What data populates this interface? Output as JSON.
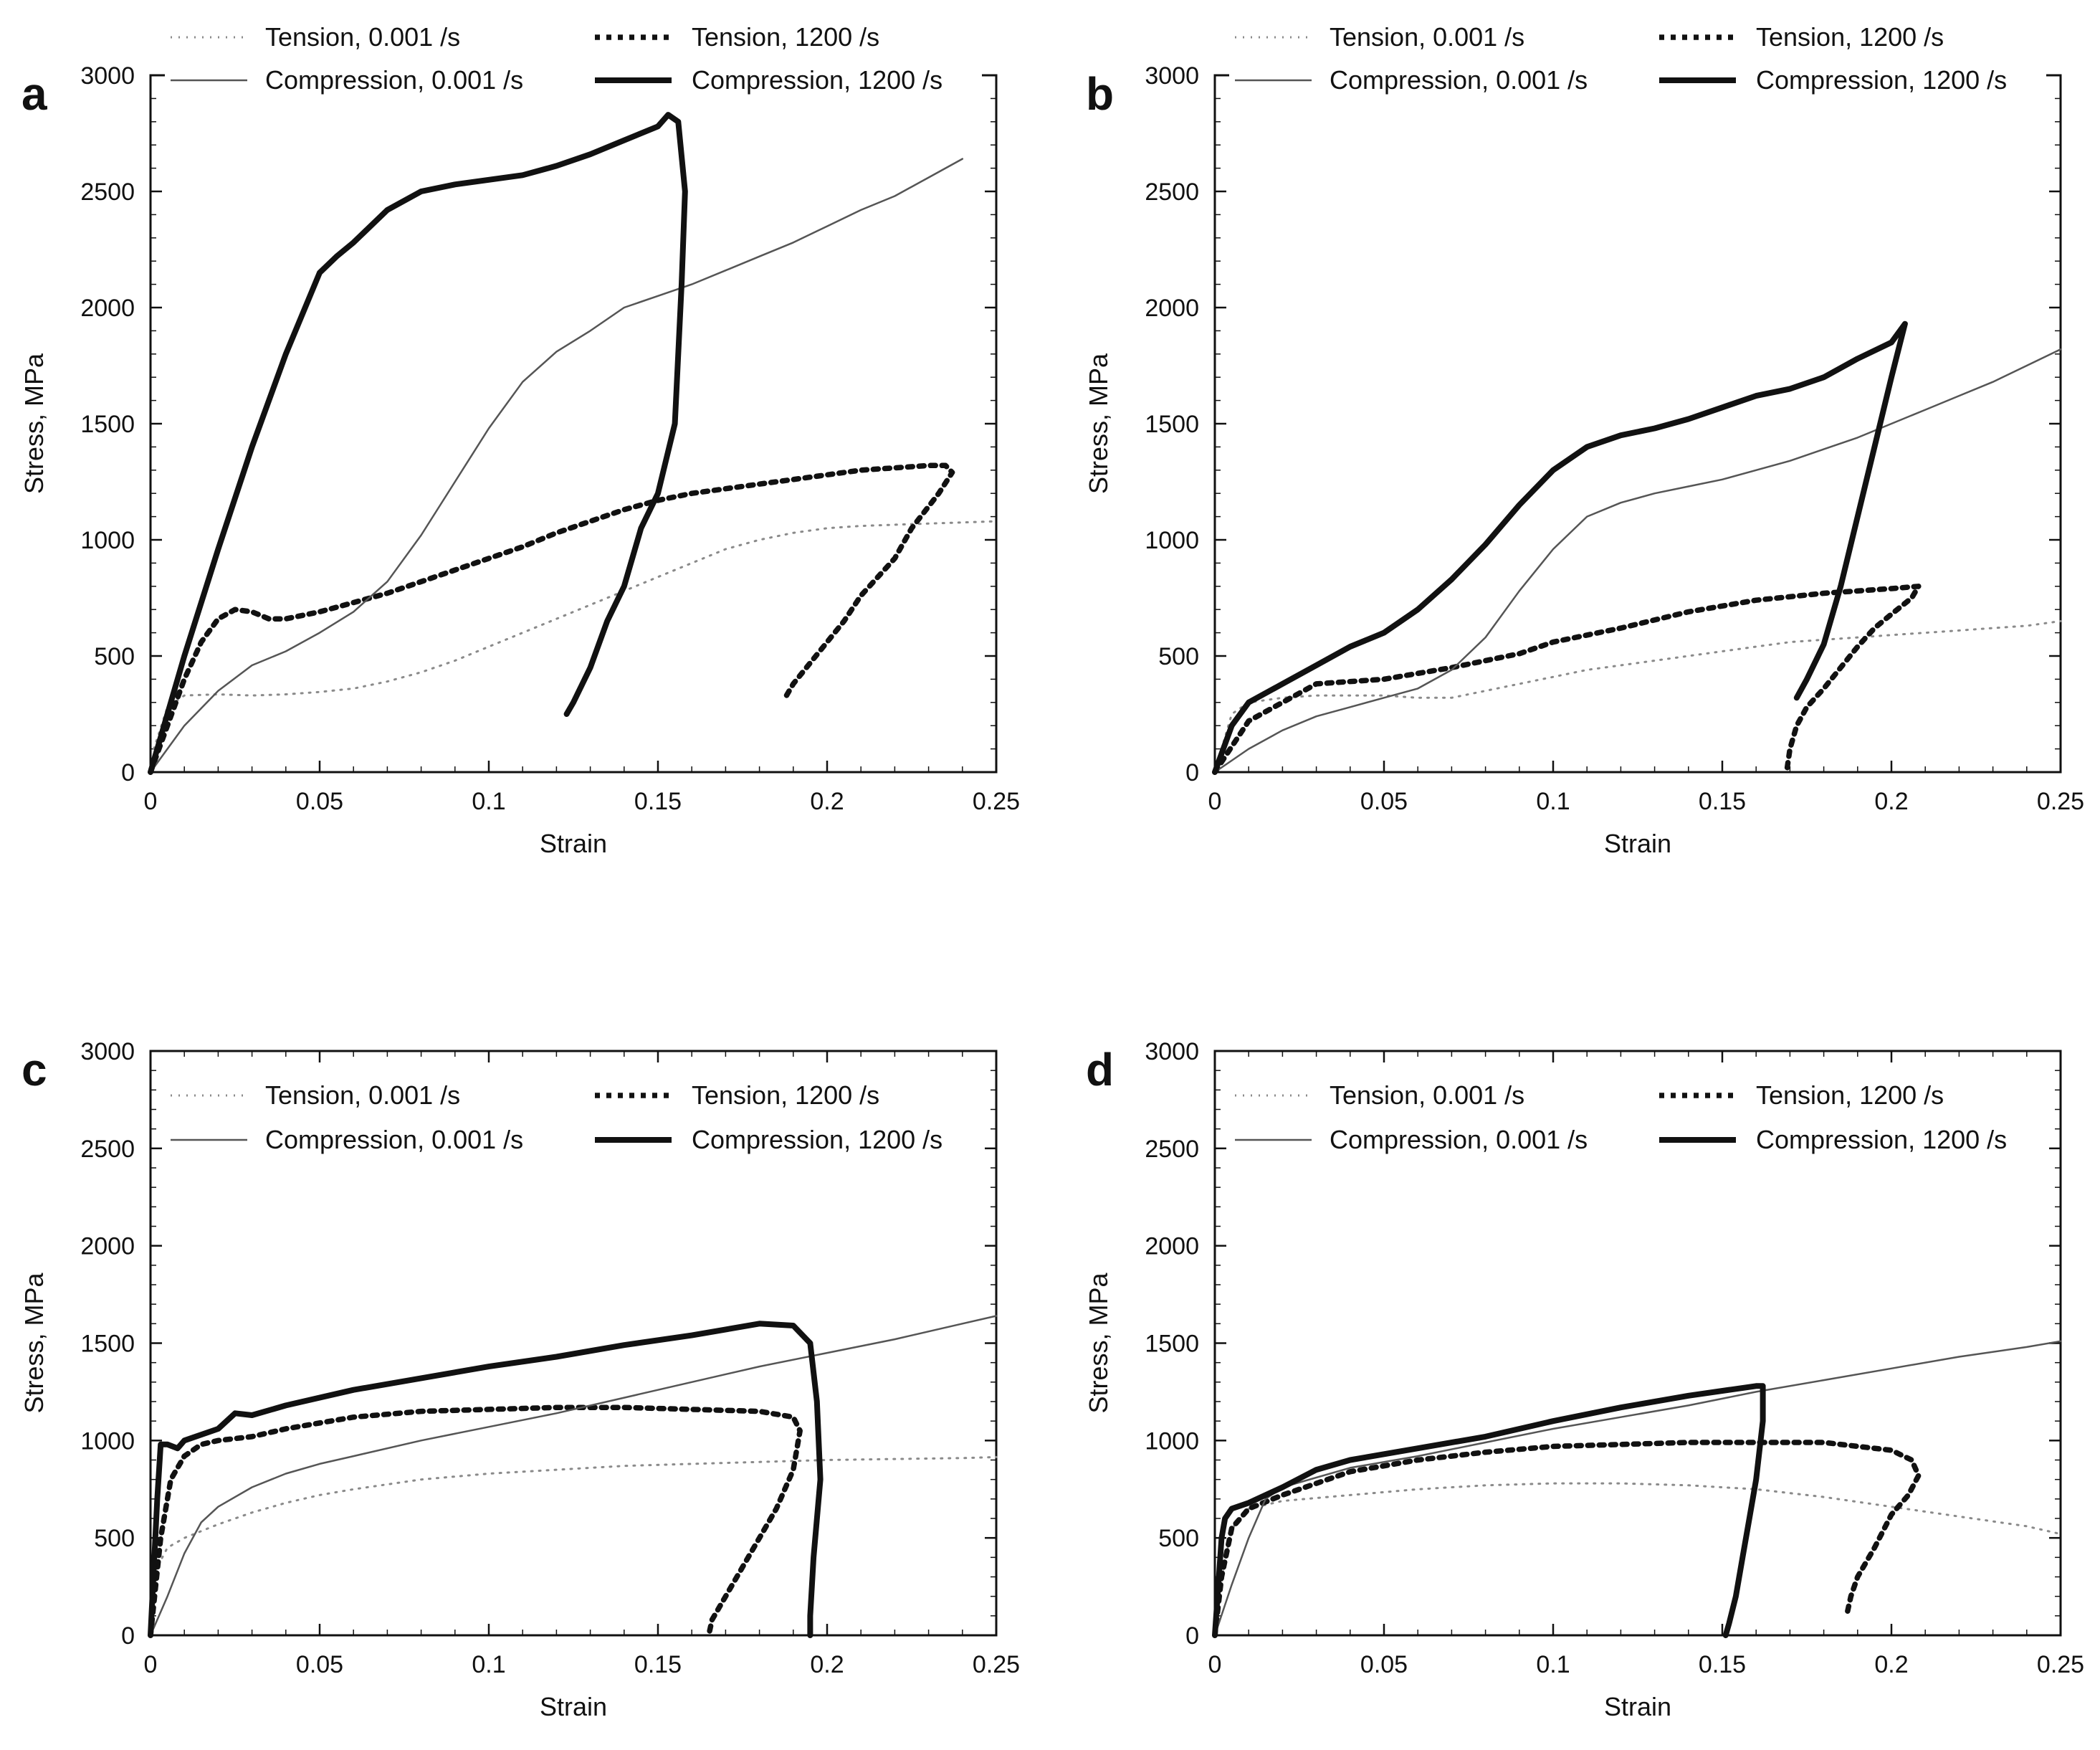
{
  "chart_data": [
    {
      "panel": "a",
      "type": "line",
      "xlabel": "Strain",
      "ylabel": "Stress, MPa",
      "xlim": [
        0,
        0.25
      ],
      "ylim": [
        0,
        3000
      ],
      "xticks": [
        "0",
        "0.05",
        "0.1",
        "0.15",
        "0.2",
        "0.25"
      ],
      "yticks": [
        "0",
        "500",
        "1000",
        "1500",
        "2000",
        "2500",
        "3000"
      ],
      "legend": "top, outside",
      "series": [
        {
          "name": "Tension, 0.001 /s",
          "style": "dotted-thin",
          "x": [
            0.001,
            0.005,
            0.01,
            0.02,
            0.03,
            0.04,
            0.05,
            0.06,
            0.07,
            0.08,
            0.09,
            0.1,
            0.11,
            0.12,
            0.13,
            0.14,
            0.15,
            0.16,
            0.17,
            0.18,
            0.19,
            0.2,
            0.21,
            0.22,
            0.23,
            0.24,
            0.25
          ],
          "y": [
            100,
            280,
            330,
            335,
            330,
            335,
            345,
            360,
            390,
            430,
            480,
            540,
            600,
            660,
            720,
            780,
            840,
            900,
            960,
            1000,
            1030,
            1050,
            1060,
            1065,
            1070,
            1075,
            1080
          ]
        },
        {
          "name": "Tension, 1200 /s",
          "style": "dotted-thick",
          "x": [
            0,
            0.01,
            0.015,
            0.02,
            0.025,
            0.03,
            0.035,
            0.04,
            0.05,
            0.06,
            0.07,
            0.08,
            0.09,
            0.1,
            0.11,
            0.12,
            0.13,
            0.14,
            0.15,
            0.16,
            0.17,
            0.18,
            0.19,
            0.2,
            0.21,
            0.22,
            0.23,
            0.235,
            0.237,
            0.233,
            0.225,
            0.22,
            0.21,
            0.205,
            0.2,
            0.195,
            0.19,
            0.188
          ],
          "y": [
            0,
            400,
            560,
            660,
            700,
            690,
            660,
            660,
            690,
            730,
            770,
            820,
            870,
            920,
            970,
            1030,
            1080,
            1130,
            1170,
            1200,
            1220,
            1240,
            1260,
            1280,
            1300,
            1310,
            1320,
            1320,
            1290,
            1200,
            1050,
            920,
            760,
            650,
            560,
            470,
            380,
            330
          ]
        },
        {
          "name": "Compression, 0.001 /s",
          "style": "solid-thin",
          "x": [
            0,
            0.01,
            0.02,
            0.03,
            0.04,
            0.05,
            0.06,
            0.07,
            0.08,
            0.09,
            0.1,
            0.11,
            0.12,
            0.13,
            0.14,
            0.15,
            0.16,
            0.17,
            0.18,
            0.19,
            0.2,
            0.21,
            0.22,
            0.23,
            0.24
          ],
          "y": [
            0,
            200,
            350,
            460,
            520,
            600,
            690,
            820,
            1020,
            1250,
            1480,
            1680,
            1810,
            1900,
            2000,
            2050,
            2100,
            2160,
            2220,
            2280,
            2350,
            2420,
            2480,
            2560,
            2640
          ]
        },
        {
          "name": "Compression, 1200 /s",
          "style": "solid-thick",
          "x": [
            0,
            0.01,
            0.02,
            0.03,
            0.04,
            0.05,
            0.055,
            0.06,
            0.07,
            0.08,
            0.09,
            0.1,
            0.11,
            0.12,
            0.13,
            0.14,
            0.15,
            0.153,
            0.156,
            0.158,
            0.157,
            0.155,
            0.15,
            0.145,
            0.14,
            0.135,
            0.13,
            0.125,
            0.123
          ],
          "y": [
            0,
            500,
            960,
            1400,
            1800,
            2150,
            2220,
            2280,
            2420,
            2500,
            2530,
            2550,
            2570,
            2610,
            2660,
            2720,
            2780,
            2830,
            2800,
            2500,
            2100,
            1500,
            1200,
            1050,
            800,
            650,
            450,
            300,
            250
          ]
        }
      ]
    },
    {
      "panel": "b",
      "type": "line",
      "xlabel": "Strain",
      "ylabel": "Stress, MPa",
      "xlim": [
        0,
        0.25
      ],
      "ylim": [
        0,
        3000
      ],
      "xticks": [
        "0",
        "0.05",
        "0.1",
        "0.15",
        "0.2",
        "0.25"
      ],
      "yticks": [
        "0",
        "500",
        "1000",
        "1500",
        "2000",
        "2500",
        "3000"
      ],
      "legend": "top, outside",
      "series": [
        {
          "name": "Tension, 0.001 /s",
          "style": "dotted-thin",
          "x": [
            0,
            0.005,
            0.01,
            0.02,
            0.03,
            0.04,
            0.05,
            0.06,
            0.07,
            0.08,
            0.09,
            0.1,
            0.11,
            0.12,
            0.13,
            0.14,
            0.15,
            0.16,
            0.17,
            0.18,
            0.19,
            0.2,
            0.21,
            0.22,
            0.23,
            0.24,
            0.25
          ],
          "y": [
            0,
            250,
            300,
            320,
            330,
            330,
            330,
            320,
            320,
            350,
            380,
            410,
            440,
            460,
            480,
            500,
            520,
            540,
            560,
            570,
            580,
            590,
            600,
            610,
            620,
            630,
            650
          ]
        },
        {
          "name": "Tension, 1200 /s",
          "style": "dotted-thick",
          "x": [
            0,
            0.01,
            0.02,
            0.03,
            0.05,
            0.07,
            0.09,
            0.1,
            0.12,
            0.14,
            0.16,
            0.18,
            0.2,
            0.208,
            0.206,
            0.2,
            0.195,
            0.19,
            0.185,
            0.18,
            0.175,
            0.172,
            0.17,
            0.169
          ],
          "y": [
            0,
            220,
            300,
            380,
            400,
            450,
            510,
            560,
            620,
            690,
            740,
            770,
            790,
            800,
            750,
            680,
            620,
            540,
            450,
            360,
            280,
            200,
            100,
            0
          ]
        },
        {
          "name": "Compression, 0.001 /s",
          "style": "solid-thin",
          "x": [
            0,
            0.01,
            0.02,
            0.03,
            0.04,
            0.05,
            0.06,
            0.07,
            0.08,
            0.09,
            0.1,
            0.11,
            0.12,
            0.13,
            0.14,
            0.15,
            0.16,
            0.17,
            0.18,
            0.19,
            0.2,
            0.21,
            0.22,
            0.23,
            0.24,
            0.25
          ],
          "y": [
            0,
            100,
            180,
            240,
            280,
            320,
            360,
            440,
            580,
            780,
            960,
            1100,
            1160,
            1200,
            1230,
            1260,
            1300,
            1340,
            1390,
            1440,
            1500,
            1560,
            1620,
            1680,
            1750,
            1820
          ]
        },
        {
          "name": "Compression, 1200 /s",
          "style": "solid-thick",
          "x": [
            0,
            0.005,
            0.01,
            0.02,
            0.03,
            0.04,
            0.05,
            0.06,
            0.07,
            0.08,
            0.09,
            0.1,
            0.11,
            0.12,
            0.13,
            0.14,
            0.15,
            0.16,
            0.17,
            0.18,
            0.19,
            0.2,
            0.204,
            0.2,
            0.195,
            0.19,
            0.185,
            0.18,
            0.175,
            0.172
          ],
          "y": [
            0,
            200,
            300,
            380,
            460,
            540,
            600,
            700,
            830,
            980,
            1150,
            1300,
            1400,
            1450,
            1480,
            1520,
            1570,
            1620,
            1650,
            1700,
            1780,
            1850,
            1930,
            1700,
            1400,
            1100,
            800,
            550,
            400,
            320
          ]
        }
      ]
    },
    {
      "panel": "c",
      "type": "line",
      "xlabel": "Strain",
      "ylabel": "Stress, MPa",
      "xlim": [
        0,
        0.25
      ],
      "ylim": [
        0,
        3000
      ],
      "xticks": [
        "0",
        "0.05",
        "0.1",
        "0.15",
        "0.2",
        "0.25"
      ],
      "yticks": [
        "0",
        "500",
        "1000",
        "1500",
        "2000",
        "2500",
        "3000"
      ],
      "legend": "top, inside",
      "series": [
        {
          "name": "Tension, 0.001 /s",
          "style": "dotted-thin",
          "x": [
            0,
            0.002,
            0.005,
            0.01,
            0.02,
            0.03,
            0.04,
            0.05,
            0.06,
            0.08,
            0.1,
            0.12,
            0.14,
            0.16,
            0.18,
            0.2,
            0.22,
            0.24,
            0.25
          ],
          "y": [
            0,
            350,
            450,
            500,
            570,
            630,
            680,
            720,
            750,
            800,
            830,
            850,
            870,
            880,
            890,
            900,
            905,
            910,
            915
          ]
        },
        {
          "name": "Tension, 1200 /s",
          "style": "dotted-thick",
          "x": [
            0,
            0.003,
            0.006,
            0.01,
            0.015,
            0.02,
            0.03,
            0.04,
            0.06,
            0.08,
            0.1,
            0.12,
            0.14,
            0.16,
            0.18,
            0.19,
            0.192,
            0.19,
            0.185,
            0.18,
            0.175,
            0.17,
            0.166,
            0.165
          ],
          "y": [
            0,
            500,
            800,
            920,
            980,
            1000,
            1020,
            1060,
            1120,
            1150,
            1160,
            1170,
            1170,
            1160,
            1150,
            1120,
            1050,
            850,
            650,
            500,
            350,
            200,
            80,
            0
          ]
        },
        {
          "name": "Compression, 0.001 /s",
          "style": "solid-thin",
          "x": [
            0,
            0.005,
            0.01,
            0.015,
            0.02,
            0.03,
            0.04,
            0.05,
            0.06,
            0.08,
            0.1,
            0.12,
            0.14,
            0.16,
            0.18,
            0.2,
            0.22,
            0.24,
            0.25
          ],
          "y": [
            0,
            200,
            420,
            580,
            660,
            760,
            830,
            880,
            920,
            1000,
            1070,
            1140,
            1220,
            1300,
            1380,
            1450,
            1520,
            1600,
            1640
          ]
        },
        {
          "name": "Compression, 1200 /s",
          "style": "solid-thick",
          "x": [
            0,
            0.002,
            0.003,
            0.005,
            0.008,
            0.01,
            0.02,
            0.025,
            0.03,
            0.04,
            0.06,
            0.08,
            0.1,
            0.12,
            0.14,
            0.16,
            0.18,
            0.19,
            0.195,
            0.197,
            0.198,
            0.196,
            0.195,
            0.195
          ],
          "y": [
            0,
            700,
            980,
            980,
            960,
            1000,
            1060,
            1140,
            1130,
            1180,
            1260,
            1320,
            1380,
            1430,
            1490,
            1540,
            1600,
            1590,
            1500,
            1200,
            800,
            400,
            100,
            0
          ]
        }
      ]
    },
    {
      "panel": "d",
      "type": "line",
      "xlabel": "Strain",
      "ylabel": "Stress, MPa",
      "xlim": [
        0,
        0.25
      ],
      "ylim": [
        0,
        3000
      ],
      "xticks": [
        "0",
        "0.05",
        "0.1",
        "0.15",
        "0.2",
        "0.25"
      ],
      "yticks": [
        "0",
        "500",
        "1000",
        "1500",
        "2000",
        "2500",
        "3000"
      ],
      "legend": "top, inside",
      "series": [
        {
          "name": "Tension, 0.001 /s",
          "style": "dotted-thin",
          "x": [
            0,
            0.003,
            0.006,
            0.01,
            0.02,
            0.04,
            0.06,
            0.08,
            0.1,
            0.12,
            0.14,
            0.16,
            0.18,
            0.2,
            0.22,
            0.24,
            0.25
          ],
          "y": [
            0,
            400,
            580,
            650,
            690,
            720,
            750,
            770,
            780,
            780,
            770,
            750,
            710,
            660,
            610,
            560,
            520
          ]
        },
        {
          "name": "Tension, 1200 /s",
          "style": "dotted-thick",
          "x": [
            0,
            0.002,
            0.005,
            0.01,
            0.02,
            0.04,
            0.06,
            0.08,
            0.1,
            0.12,
            0.14,
            0.16,
            0.18,
            0.2,
            0.206,
            0.208,
            0.205,
            0.2,
            0.195,
            0.19,
            0.188,
            0.187
          ],
          "y": [
            0,
            300,
            550,
            650,
            720,
            840,
            900,
            940,
            970,
            980,
            990,
            990,
            990,
            950,
            900,
            820,
            720,
            620,
            450,
            300,
            200,
            120
          ]
        },
        {
          "name": "Compression, 0.001 /s",
          "style": "solid-thin",
          "x": [
            0,
            0.005,
            0.01,
            0.015,
            0.02,
            0.04,
            0.06,
            0.08,
            0.1,
            0.12,
            0.14,
            0.16,
            0.18,
            0.2,
            0.22,
            0.24,
            0.25
          ],
          "y": [
            0,
            260,
            500,
            700,
            760,
            860,
            920,
            990,
            1060,
            1120,
            1180,
            1250,
            1310,
            1370,
            1430,
            1480,
            1510
          ]
        },
        {
          "name": "Compression, 1200 /s",
          "style": "solid-thick",
          "x": [
            0,
            0.002,
            0.003,
            0.005,
            0.01,
            0.02,
            0.03,
            0.04,
            0.06,
            0.08,
            0.1,
            0.12,
            0.14,
            0.16,
            0.162,
            0.162,
            0.16,
            0.158,
            0.156,
            0.154,
            0.152,
            0.151
          ],
          "y": [
            0,
            500,
            600,
            650,
            680,
            760,
            850,
            900,
            960,
            1020,
            1100,
            1170,
            1230,
            1280,
            1280,
            1100,
            800,
            600,
            400,
            200,
            60,
            0
          ]
        }
      ]
    }
  ]
}
